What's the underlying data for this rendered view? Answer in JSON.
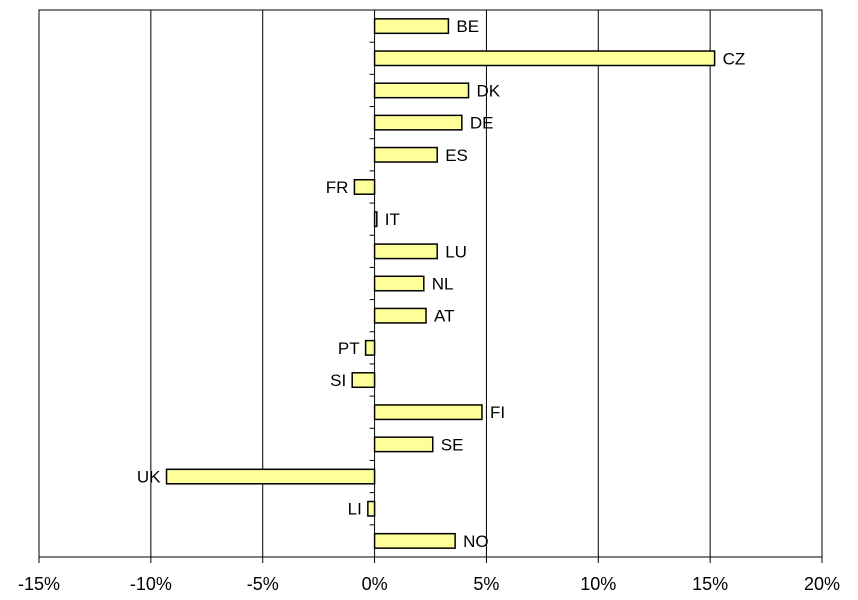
{
  "chart_data": {
    "type": "bar",
    "orientation": "horizontal",
    "categories": [
      "BE",
      "CZ",
      "DK",
      "DE",
      "ES",
      "FR",
      "IT",
      "LU",
      "NL",
      "AT",
      "PT",
      "SI",
      "FI",
      "SE",
      "UK",
      "LI",
      "NO"
    ],
    "values": [
      3.3,
      15.2,
      4.2,
      3.9,
      2.8,
      -0.9,
      0.1,
      2.8,
      2.2,
      2.3,
      -0.4,
      -1.0,
      4.8,
      2.6,
      -9.3,
      -0.3,
      3.6
    ],
    "xlim": [
      -15,
      20
    ],
    "x_ticks": [
      -15,
      -10,
      -5,
      0,
      5,
      10,
      15,
      20
    ],
    "x_tick_labels": [
      "-15%",
      "-10%",
      "-5%",
      "0%",
      "5%",
      "10%",
      "15%",
      "20%"
    ],
    "grid": "vertical",
    "bar_color": "#ffff99",
    "bar_stroke": "#000000",
    "title": "",
    "xlabel": "",
    "ylabel": ""
  }
}
